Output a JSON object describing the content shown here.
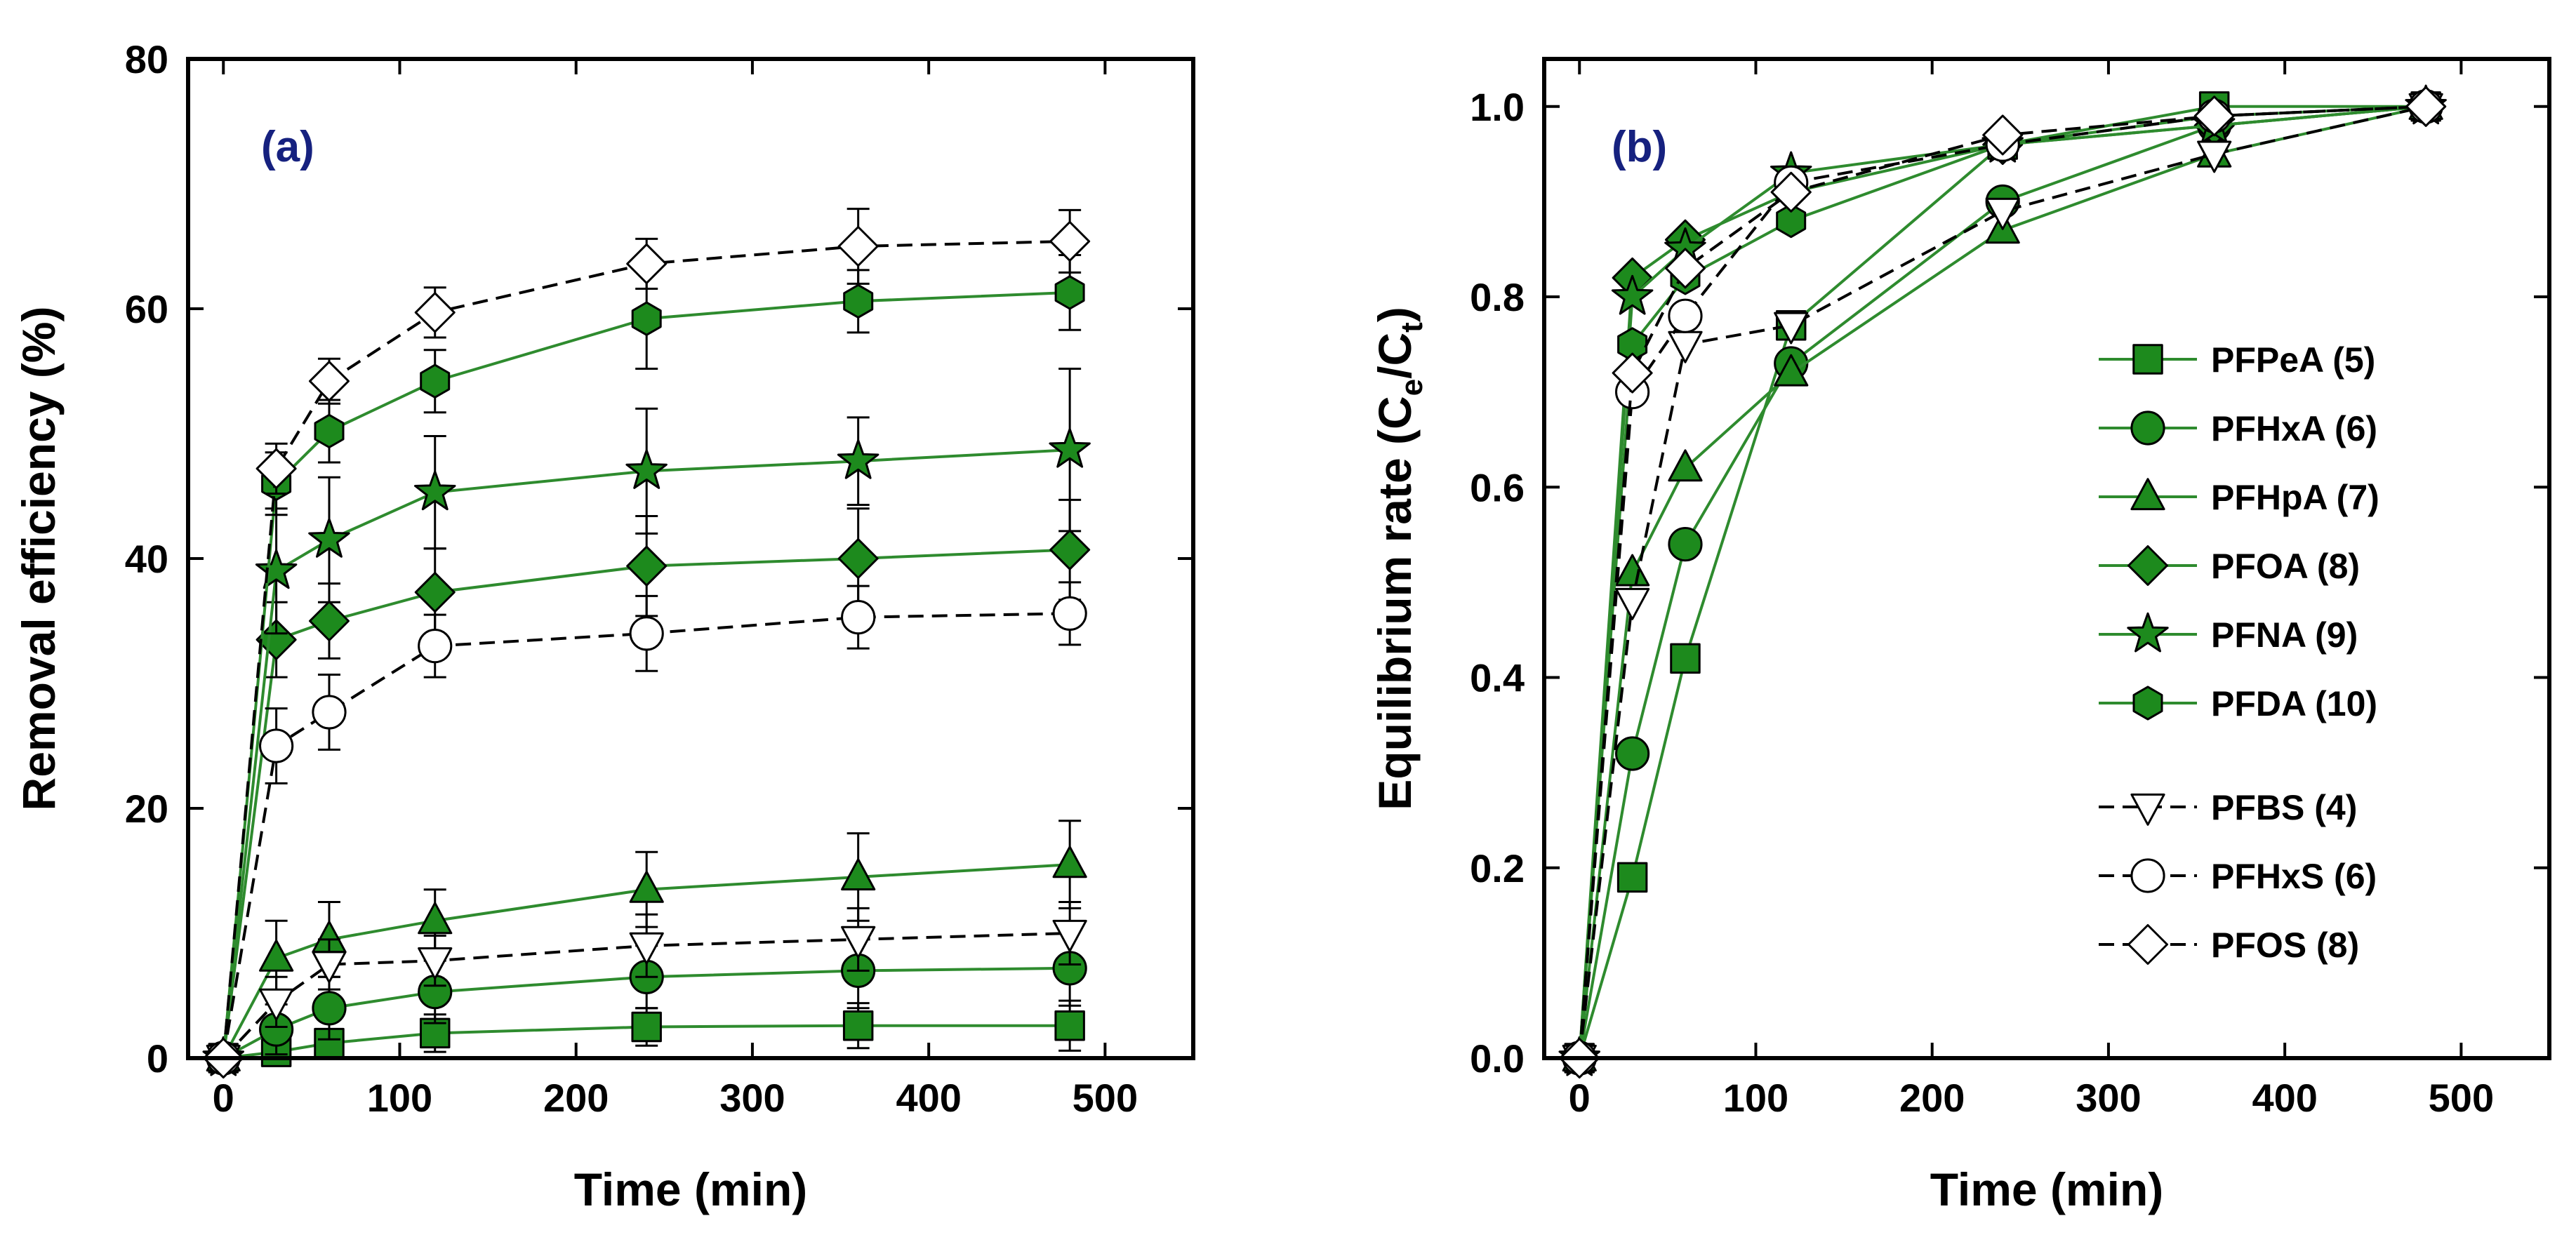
{
  "colors": {
    "green_fill": "#1d8a1d",
    "green_line": "#2e8b2e",
    "black": "#000000",
    "white": "#ffffff",
    "panel_label": "#16217f"
  },
  "legend": {
    "entries": [
      {
        "label": "PFPeA (5)",
        "marker": "square",
        "fill": "green",
        "dash": false
      },
      {
        "label": "PFHxA (6)",
        "marker": "circle",
        "fill": "green",
        "dash": false
      },
      {
        "label": "PFHpA (7)",
        "marker": "triangle-up",
        "fill": "green",
        "dash": false
      },
      {
        "label": "PFOA (8)",
        "marker": "diamond",
        "fill": "green",
        "dash": false
      },
      {
        "label": "PFNA (9)",
        "marker": "star",
        "fill": "green",
        "dash": false
      },
      {
        "label": "PFDA (10)",
        "marker": "hexagon",
        "fill": "green",
        "dash": false
      },
      {
        "label": "PFBS (4)",
        "marker": "triangle-down",
        "fill": "white",
        "dash": true
      },
      {
        "label": "PFHxS (6)",
        "marker": "circle",
        "fill": "white",
        "dash": true
      },
      {
        "label": "PFOS (8)",
        "marker": "diamond",
        "fill": "white",
        "dash": true
      }
    ],
    "placement": "right-center of panel (b)"
  },
  "chart_data": [
    {
      "type": "line",
      "panel_label": "(a)",
      "xlabel": "Time  (min)",
      "ylabel": "Removal efficiency  (%)",
      "xlim": [
        -20,
        550
      ],
      "ylim": [
        0,
        80
      ],
      "xticks": [
        0,
        100,
        200,
        300,
        400,
        500
      ],
      "yticks": [
        0,
        20,
        40,
        60,
        80
      ],
      "x": [
        0,
        30,
        60,
        120,
        240,
        360,
        480
      ],
      "error_bars": true,
      "grid": false,
      "series": [
        {
          "name": "PFPeA (5)",
          "marker": "square",
          "fill": "green",
          "dash": false,
          "values": [
            0,
            0.5,
            1.2,
            2.0,
            2.5,
            2.6,
            2.6
          ],
          "errors": [
            0,
            0.5,
            1,
            1.5,
            1.5,
            1.8,
            2
          ]
        },
        {
          "name": "PFHxA (6)",
          "marker": "circle",
          "fill": "green",
          "dash": false,
          "values": [
            0,
            2.3,
            4.0,
            5.3,
            6.5,
            7.0,
            7.2
          ],
          "errors": [
            0,
            2,
            2.5,
            2.5,
            2.5,
            3,
            3
          ]
        },
        {
          "name": "PFHpA (7)",
          "marker": "triangle-up",
          "fill": "green",
          "dash": false,
          "values": [
            0,
            8.0,
            9.5,
            11.0,
            13.5,
            14.5,
            15.5
          ],
          "errors": [
            0,
            3,
            3,
            2.5,
            3,
            3.5,
            3.5
          ]
        },
        {
          "name": "PFOA (8)",
          "marker": "diamond",
          "fill": "green",
          "dash": false,
          "values": [
            0,
            33.5,
            35.0,
            37.3,
            39.4,
            40.0,
            40.7
          ],
          "errors": [
            0,
            3,
            3,
            3.5,
            4,
            4,
            4
          ]
        },
        {
          "name": "PFNA (9)",
          "marker": "star",
          "fill": "green",
          "dash": false,
          "values": [
            0,
            39.0,
            41.5,
            45.3,
            47.0,
            47.8,
            48.7
          ],
          "errors": [
            0,
            5,
            5,
            4.5,
            5,
            3.5,
            6.5
          ]
        },
        {
          "name": "PFDA (10)",
          "marker": "hexagon",
          "fill": "green",
          "dash": false,
          "values": [
            0,
            46.0,
            50.2,
            54.2,
            59.2,
            60.6,
            61.3
          ],
          "errors": [
            0,
            2.5,
            2.5,
            2.5,
            4,
            2.5,
            3
          ]
        },
        {
          "name": "PFBS (4)",
          "marker": "triangle-down",
          "fill": "white",
          "dash": true,
          "values": [
            0,
            4.5,
            7.5,
            7.8,
            9.0,
            9.5,
            10.0
          ],
          "errors": [
            0,
            2,
            2,
            2,
            2.5,
            2.5,
            2.5
          ]
        },
        {
          "name": "PFHxS (6)",
          "marker": "circle",
          "fill": "white",
          "dash": true,
          "values": [
            0,
            25.0,
            27.7,
            33.0,
            34.0,
            35.3,
            35.6
          ],
          "errors": [
            0,
            3,
            3,
            2.5,
            3,
            2.5,
            2.5
          ]
        },
        {
          "name": "PFOS (8)",
          "marker": "diamond",
          "fill": "white",
          "dash": true,
          "values": [
            0,
            47.2,
            54.2,
            59.7,
            63.6,
            65.0,
            65.4
          ],
          "errors": [
            0,
            2,
            1.8,
            2,
            2,
            3,
            2.5
          ]
        }
      ]
    },
    {
      "type": "line",
      "panel_label": "(b)",
      "xlabel": "Time  (min)",
      "ylabel": "Equilibrium rate  (C",
      "ylabel_sub_1": "e",
      "ylabel_mid": "/C",
      "ylabel_sub_2": "t",
      "ylabel_end": ")",
      "xlim": [
        -20,
        550
      ],
      "ylim": [
        0,
        1.05
      ],
      "xticks": [
        0,
        100,
        200,
        300,
        400,
        500
      ],
      "yticks": [
        0.0,
        0.2,
        0.4,
        0.6,
        0.8,
        1.0
      ],
      "ytick_labels": [
        "0.0",
        "0.2",
        "0.4",
        "0.6",
        "0.8",
        "1.0"
      ],
      "x": [
        0,
        30,
        60,
        120,
        240,
        360,
        480
      ],
      "grid": false,
      "series": [
        {
          "name": "PFPeA (5)",
          "marker": "square",
          "fill": "green",
          "dash": false,
          "values": [
            0,
            0.19,
            0.42,
            0.77,
            0.96,
            1.0,
            1.0
          ]
        },
        {
          "name": "PFHxA (6)",
          "marker": "circle",
          "fill": "green",
          "dash": false,
          "values": [
            0,
            0.32,
            0.54,
            0.73,
            0.9,
            0.98,
            1.0
          ]
        },
        {
          "name": "PFHpA (7)",
          "marker": "triangle-up",
          "fill": "green",
          "dash": false,
          "values": [
            0,
            0.51,
            0.62,
            0.72,
            0.87,
            0.95,
            1.0
          ]
        },
        {
          "name": "PFOA (8)",
          "marker": "diamond",
          "fill": "green",
          "dash": false,
          "values": [
            0,
            0.82,
            0.86,
            0.91,
            0.96,
            0.98,
            1.0
          ]
        },
        {
          "name": "PFNA (9)",
          "marker": "star",
          "fill": "green",
          "dash": false,
          "values": [
            0,
            0.8,
            0.85,
            0.93,
            0.96,
            0.98,
            1.0
          ]
        },
        {
          "name": "PFDA (10)",
          "marker": "hexagon",
          "fill": "green",
          "dash": false,
          "values": [
            0,
            0.75,
            0.82,
            0.88,
            0.96,
            0.99,
            1.0
          ]
        },
        {
          "name": "PFBS (4)",
          "marker": "triangle-down",
          "fill": "white",
          "dash": true,
          "values": [
            0,
            0.48,
            0.75,
            0.77,
            0.89,
            0.95,
            1.0
          ]
        },
        {
          "name": "PFHxS (6)",
          "marker": "circle",
          "fill": "white",
          "dash": true,
          "values": [
            0,
            0.7,
            0.78,
            0.92,
            0.96,
            0.99,
            1.0
          ]
        },
        {
          "name": "PFOS (8)",
          "marker": "diamond",
          "fill": "white",
          "dash": true,
          "values": [
            0,
            0.72,
            0.83,
            0.91,
            0.97,
            0.99,
            1.0
          ]
        }
      ]
    }
  ]
}
